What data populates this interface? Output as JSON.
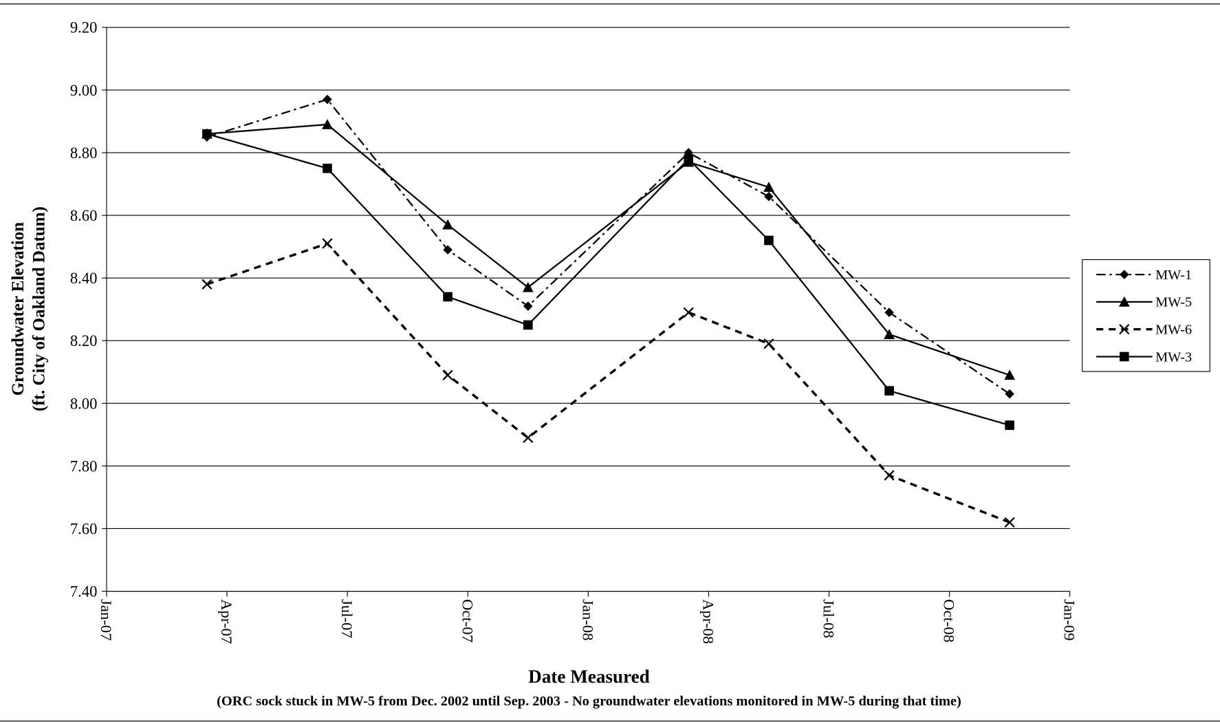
{
  "chart_data": {
    "type": "line",
    "y_label_lines": [
      "Groundwater Elevation",
      "(ft. City of Oakland Datum)"
    ],
    "x_label": "Date Measured",
    "note": "(ORC sock stuck in MW-5 from Dec. 2002 until Sep. 2003 - No groundwater elevations monitored in MW-5 during that time)",
    "x": [
      "Mar-07",
      "Jun-07",
      "Sep-07",
      "Nov-07",
      "Mar-08",
      "May-08",
      "Aug-08",
      "Nov-08"
    ],
    "xlim": [
      "Jan-07",
      "Jan-09"
    ],
    "xticks": [
      "Jan-07",
      "Apr-07",
      "Jul-07",
      "Oct-07",
      "Jan-08",
      "Apr-08",
      "Jul-08",
      "Oct-08",
      "Jan-09"
    ],
    "ylim": [
      7.4,
      9.2
    ],
    "yticks": [
      {
        "value": 7.4,
        "label": "7.40"
      },
      {
        "value": 7.6,
        "label": "7.60"
      },
      {
        "value": 7.8,
        "label": "7.80"
      },
      {
        "value": 8,
        "label": "8.00"
      },
      {
        "value": 8.2,
        "label": "8.20"
      },
      {
        "value": 8.4,
        "label": "8.40"
      },
      {
        "value": 8.6,
        "label": "8.60"
      },
      {
        "value": 8.8,
        "label": "8.80"
      },
      {
        "value": 9,
        "label": "9.00"
      },
      {
        "value": 9.2,
        "label": "9.20"
      }
    ],
    "grid": true,
    "legend": "right",
    "series": [
      {
        "name": "MW-1",
        "color": "#000000",
        "line_style": "dashdot",
        "marker": "diamond",
        "values": [
          8.85,
          8.97,
          8.49,
          8.31,
          8.8,
          8.66,
          8.29,
          8.03
        ]
      },
      {
        "name": "MW-5",
        "color": "#000000",
        "line_style": "solid",
        "marker": "triangle",
        "values": [
          8.86,
          8.89,
          8.57,
          8.37,
          8.77,
          8.69,
          8.22,
          8.09
        ]
      },
      {
        "name": "MW-6",
        "color": "#000000",
        "line_style": "dashed",
        "marker": "x",
        "values": [
          8.38,
          8.51,
          8.09,
          7.89,
          8.29,
          8.19,
          7.77,
          7.62
        ]
      },
      {
        "name": "MW-3",
        "color": "#000000",
        "line_style": "solid",
        "marker": "square",
        "values": [
          8.86,
          8.75,
          8.34,
          8.25,
          8.78,
          8.52,
          8.04,
          7.93
        ]
      }
    ]
  }
}
